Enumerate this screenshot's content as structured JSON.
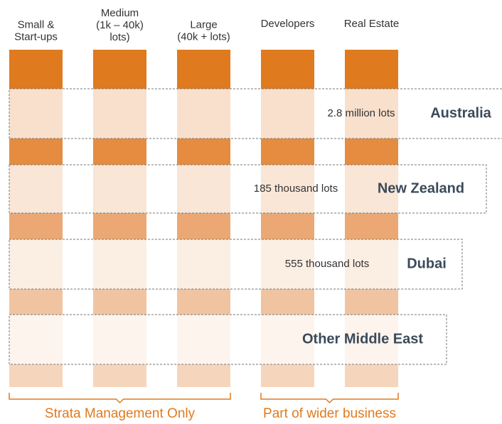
{
  "columns": [
    {
      "lines": [
        "Small &",
        "Start-ups"
      ]
    },
    {
      "lines": [
        "Medium",
        "(1k – 40k)",
        "lots)"
      ]
    },
    {
      "lines": [
        "Large",
        "(40k + lots)"
      ]
    },
    {
      "lines": [
        "Developers"
      ]
    },
    {
      "lines": [
        "Real Estate"
      ]
    }
  ],
  "regions": [
    {
      "name": "Australia",
      "lots": "2.8 million lots"
    },
    {
      "name": "New Zealand",
      "lots": "185 thousand lots"
    },
    {
      "name": "Dubai",
      "lots": "555 thousand lots"
    },
    {
      "name": "Other Middle East"
    }
  ],
  "groups": [
    "Strata Management Only",
    "Part of wider business"
  ]
}
